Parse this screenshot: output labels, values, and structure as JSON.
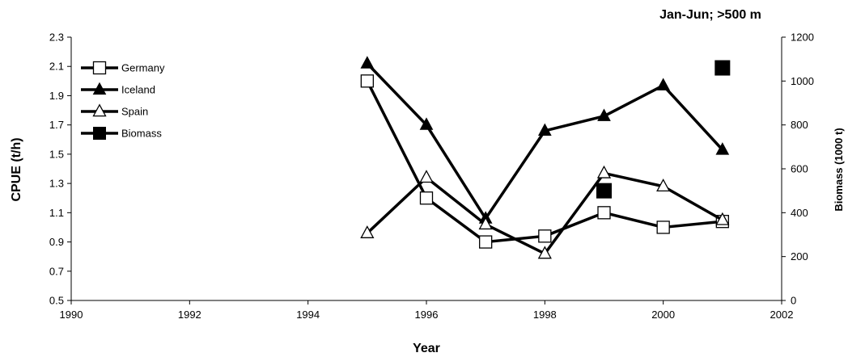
{
  "chart_data": {
    "type": "line",
    "title": "Jan-Jun; >500 m",
    "xlabel": "Year",
    "ylabel": "CPUE (t/h)",
    "y2label": "Biomass (1000 t)",
    "xlim": [
      1990,
      2002
    ],
    "ylim": [
      0.5,
      2.3
    ],
    "y2lim": [
      0,
      1200
    ],
    "xticks": [
      1990,
      1992,
      1994,
      1996,
      1998,
      2000,
      2002
    ],
    "yticks": [
      "0.5",
      "0.7",
      "0.9",
      "1.1",
      "1.3",
      "1.5",
      "1.7",
      "1.9",
      "2.1",
      "2.3"
    ],
    "y2ticks": [
      "0",
      "200",
      "400",
      "600",
      "800",
      "1000",
      "1200"
    ],
    "grid": false,
    "legend": "top-left",
    "series": [
      {
        "name": "Germany",
        "marker": "open-square",
        "axis": "left",
        "x": [
          1995,
          1996,
          1997,
          1998,
          1999,
          2000,
          2001
        ],
        "y": [
          2.0,
          1.2,
          0.9,
          0.94,
          1.1,
          1.0,
          1.04
        ]
      },
      {
        "name": "Iceland",
        "marker": "filled-triangle",
        "axis": "left",
        "x": [
          1995,
          1996,
          1997,
          1998,
          1999,
          2000,
          2001
        ],
        "y": [
          2.12,
          1.7,
          1.06,
          1.66,
          1.76,
          1.97,
          1.53
        ]
      },
      {
        "name": "Spain",
        "marker": "open-triangle",
        "axis": "left",
        "x": [
          1995,
          1996,
          1997,
          1998,
          1999,
          2000,
          2001
        ],
        "y": [
          0.96,
          1.34,
          1.02,
          0.82,
          1.37,
          1.28,
          1.05
        ]
      },
      {
        "name": "Biomass",
        "marker": "filled-square",
        "axis": "right",
        "line": false,
        "x": [
          1999,
          2001
        ],
        "y": [
          500,
          1060
        ]
      }
    ]
  }
}
